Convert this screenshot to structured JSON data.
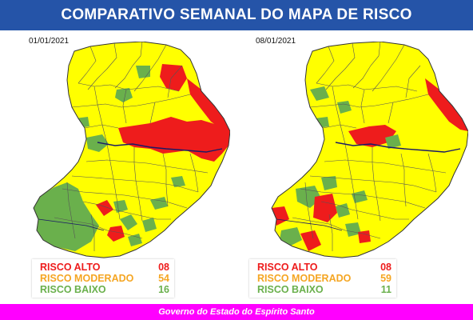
{
  "header": {
    "title": "COMPARATIVO SEMANAL DO MAPA DE RISCO"
  },
  "colors": {
    "header_bg": "#2554a8",
    "footer_bg": "#ff00ff",
    "risk_high": "#ee1c1c",
    "risk_moderate": "#ffff00",
    "risk_low": "#6ab04c",
    "legend_moderate_text": "#f5a623"
  },
  "panels": [
    {
      "date": "01/01/2021",
      "legend": [
        {
          "label": "RISCO ALTO",
          "count": "08",
          "color": "#ee1c1c"
        },
        {
          "label": "RISCO MODERADO",
          "count": "54",
          "color": "#f5a623"
        },
        {
          "label": "RISCO BAIXO",
          "count": "16",
          "color": "#6ab04c"
        }
      ]
    },
    {
      "date": "08/01/2021",
      "legend": [
        {
          "label": "RISCO ALTO",
          "count": "08",
          "color": "#ee1c1c"
        },
        {
          "label": "RISCO MODERADO",
          "count": "59",
          "color": "#f5a623"
        },
        {
          "label": "RISCO BAIXO",
          "count": "11",
          "color": "#6ab04c"
        }
      ]
    }
  ],
  "footer": {
    "text": "Governo do Estado do Espírito Santo"
  }
}
